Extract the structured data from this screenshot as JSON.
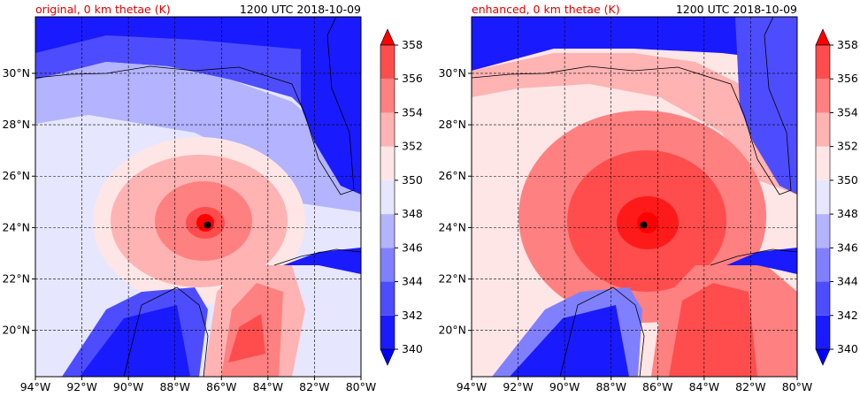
{
  "panels": [
    {
      "id": "original",
      "title_left": "original, 0 km thetae (K)",
      "title_right": "1200 UTC 2018-10-09"
    },
    {
      "id": "enhanced",
      "title_left": "enhanced, 0 km thetae (K)",
      "title_right": "1200 UTC 2018-10-09"
    }
  ],
  "axes": {
    "lon_ticks": [
      "94°W",
      "92°W",
      "90°W",
      "88°W",
      "86°W",
      "84°W",
      "82°W",
      "80°W"
    ],
    "lat_ticks": [
      "20°N",
      "22°N",
      "24°N",
      "26°N",
      "28°N",
      "30°N"
    ],
    "lon_range": [
      -94,
      -80
    ],
    "lat_range": [
      18.2,
      32.2
    ]
  },
  "colorbar": {
    "labels": [
      "340",
      "342",
      "344",
      "346",
      "348",
      "350",
      "352",
      "354",
      "356",
      "358"
    ],
    "levels": [
      340,
      342,
      344,
      346,
      348,
      350,
      352,
      354,
      356,
      358
    ],
    "colors": [
      "#1a1aff",
      "#4d4dff",
      "#8080ff",
      "#b3b3ff",
      "#e6e6ff",
      "#ffe6e6",
      "#ffb3b3",
      "#ff8080",
      "#ff4d4d",
      "#ff1a1a"
    ],
    "under_color": "#0000ff",
    "over_color": "#ff0000"
  },
  "storm_center": {
    "lon": -86.6,
    "lat": 24.1
  }
}
